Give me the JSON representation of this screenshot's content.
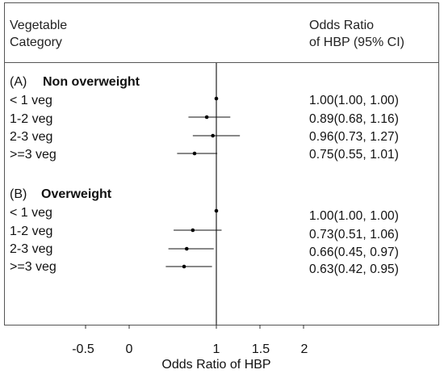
{
  "header": {
    "col1_line1": "Vegetable",
    "col1_line2": "Category",
    "col2_line1": "Odds Ratio",
    "col2_line2": "of HBP (95% CI)"
  },
  "chart_data": {
    "type": "forest",
    "xlabel": "Odds Ratio of HBP",
    "xticks": [
      -0.5,
      0,
      1,
      1.5,
      2
    ],
    "xtick_labels": [
      "-0.5",
      "0",
      "1",
      "1.5",
      "2"
    ],
    "reference_line": 1,
    "groups": [
      {
        "prefix": "(A)",
        "name": "Non overweight",
        "rows": [
          {
            "label": "< 1 veg",
            "or": 1.0,
            "lo": 1.0,
            "hi": 1.0,
            "text": "1.00(1.00, 1.00)"
          },
          {
            "label": "1-2 veg",
            "or": 0.89,
            "lo": 0.68,
            "hi": 1.16,
            "text": "0.89(0.68, 1.16)"
          },
          {
            "label": "2-3 veg",
            "or": 0.96,
            "lo": 0.73,
            "hi": 1.27,
            "text": "0.96(0.73, 1.27)"
          },
          {
            "label": ">=3 veg",
            "or": 0.75,
            "lo": 0.55,
            "hi": 1.01,
            "text": "0.75(0.55, 1.01)"
          }
        ]
      },
      {
        "prefix": "(B)",
        "name": "Overweight",
        "rows": [
          {
            "label": "< 1 veg",
            "or": 1.0,
            "lo": 1.0,
            "hi": 1.0,
            "text": "1.00(1.00, 1.00)"
          },
          {
            "label": "1-2 veg",
            "or": 0.73,
            "lo": 0.51,
            "hi": 1.06,
            "text": "0.73(0.51, 1.06)"
          },
          {
            "label": "2-3 veg",
            "or": 0.66,
            "lo": 0.45,
            "hi": 0.97,
            "text": "0.66(0.45, 0.97)"
          },
          {
            "label": ">=3 veg",
            "or": 0.63,
            "lo": 0.42,
            "hi": 0.95,
            "text": "0.63(0.42, 0.95)"
          }
        ]
      }
    ]
  }
}
